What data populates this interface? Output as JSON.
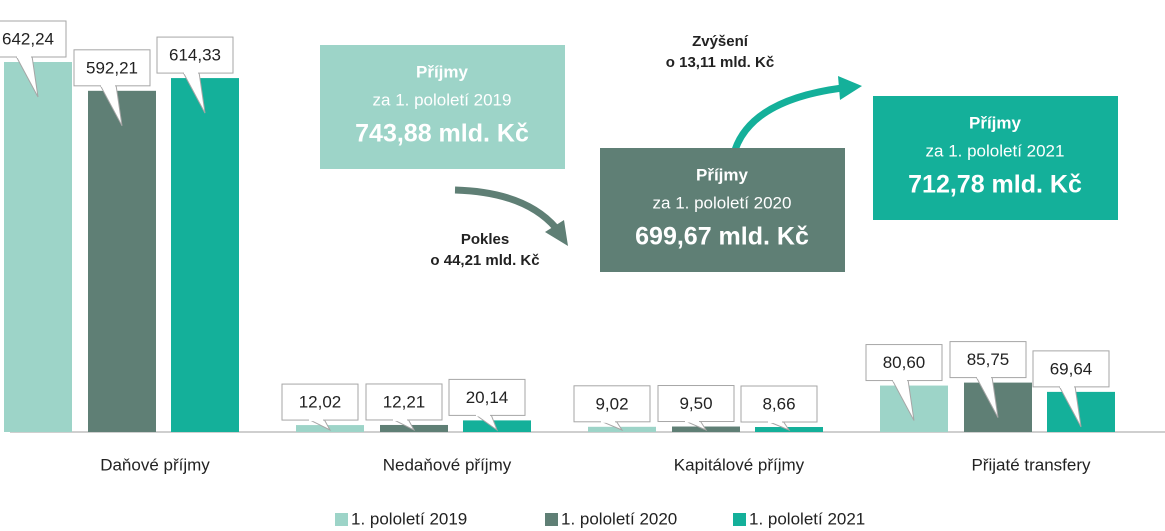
{
  "chart_data": {
    "type": "bar",
    "categories": [
      "Daňové příjmy",
      "Nedaňové příjmy",
      "Kapitálové příjmy",
      "Přijaté transfery"
    ],
    "series": [
      {
        "name": "1. pololetí 2019",
        "color": "#9dd4c8",
        "values": [
          642.24,
          12.02,
          9.02,
          80.6
        ],
        "value_labels": [
          "642,24",
          "12,02",
          "9,02",
          "80,60"
        ]
      },
      {
        "name": "1. pololetí 2020",
        "color": "#5f7f75",
        "values": [
          592.21,
          12.21,
          9.5,
          85.75
        ],
        "value_labels": [
          "592,21",
          "12,21",
          "9,50",
          "85,75"
        ]
      },
      {
        "name": "1. pololetí 2021",
        "color": "#14b09a",
        "values": [
          614.33,
          20.14,
          8.66,
          69.64
        ],
        "value_labels": [
          "614,33",
          "20,14",
          "8,66",
          "69,64"
        ]
      }
    ],
    "annotations": [
      {
        "title": "Příjmy",
        "subtitle": "za 1. pololetí 2019",
        "value": "743,88 mld. Kč"
      },
      {
        "title": "Příjmy",
        "subtitle": "za 1. pololetí 2020",
        "value": "699,67 mld. Kč"
      },
      {
        "title": "Příjmy",
        "subtitle": "za 1. pololetí 2021",
        "value": "712,78 mld. Kč"
      }
    ],
    "changes": [
      {
        "lines": [
          "Pokles",
          "o 44,21 mld. Kč"
        ]
      },
      {
        "lines": [
          "Zvýšení",
          "o 13,11 mld. Kč"
        ]
      }
    ]
  }
}
